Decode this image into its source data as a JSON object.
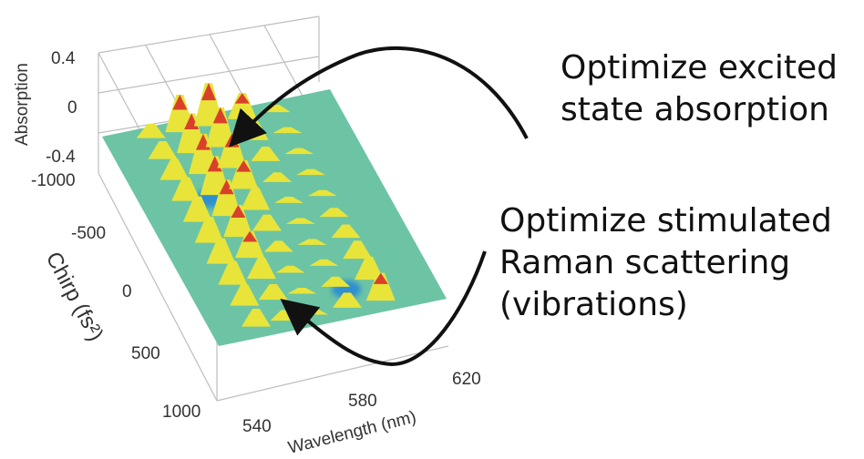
{
  "chart_data": {
    "type": "surface",
    "title": "",
    "xlabel": "Wavelength (nm)",
    "ylabel": "Chirp (fs²)",
    "zlabel": "Absorption",
    "x_ticks": [
      "540",
      "580",
      "620"
    ],
    "y_ticks": [
      "-1000",
      "-500",
      "0",
      "500",
      "1000"
    ],
    "z_ticks": [
      "0.4",
      "0",
      "-0.4"
    ],
    "xlim": [
      530,
      625
    ],
    "ylim": [
      -1000,
      1000
    ],
    "zlim": [
      -0.4,
      0.4
    ],
    "colormap": "jet",
    "grid": true,
    "ridges": [
      {
        "wavelength": 548,
        "peak": 0.22
      },
      {
        "wavelength": 560,
        "peak": 0.34
      },
      {
        "wavelength": 572,
        "peak": 0.38
      },
      {
        "wavelength": 586,
        "peak": 0.36
      },
      {
        "wavelength": 600,
        "peak": 0.3
      }
    ]
  },
  "annotations": {
    "excited": "Optimize excited\nstate absorption",
    "raman": "Optimize stimulated\nRaman scattering\n(vibrations)"
  },
  "colors": {
    "low": "#2d8fd0",
    "mid": "#6cc4a4",
    "high": "#e8e43a",
    "peak": "#d9402a"
  }
}
